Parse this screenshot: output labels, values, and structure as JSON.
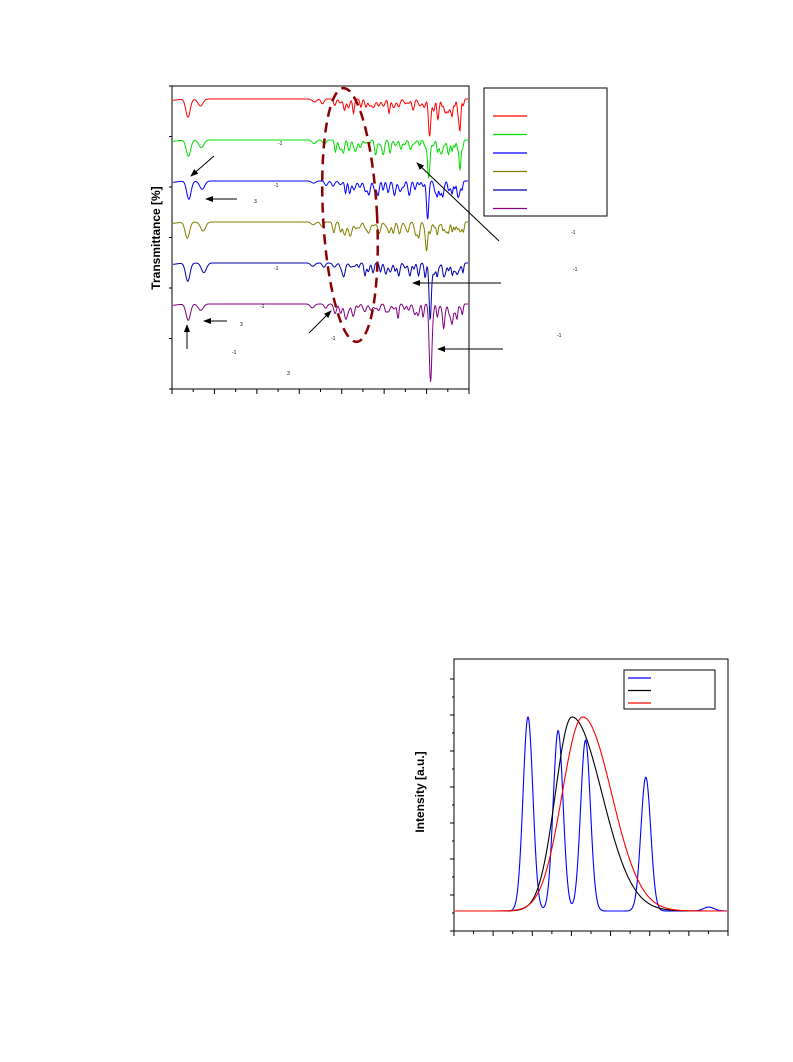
{
  "chart_data": [
    {
      "type": "line",
      "title": "",
      "xlabel": "",
      "ylabel": "Transmittance  [%]",
      "grid": false,
      "legend": {
        "placement": "top-right",
        "entries": [
          {
            "label": "",
            "color": "#ff0000"
          },
          {
            "label": "",
            "color": "#00dd00"
          },
          {
            "label": "",
            "color": "#0000ff"
          },
          {
            "label": "",
            "color": "#808000"
          },
          {
            "label": "",
            "color": "#0000aa"
          },
          {
            "label": "",
            "color": "#800080"
          }
        ]
      },
      "series": [
        {
          "color": "#ff0000"
        },
        {
          "color": "#00dd00"
        },
        {
          "color": "#0000ff"
        },
        {
          "color": "#808000"
        },
        {
          "color": "#0000aa"
        },
        {
          "color": "#800080"
        }
      ],
      "annotations": [
        {
          "text": "-1"
        },
        {
          "text": "-1"
        },
        {
          "text": "3"
        },
        {
          "text": "-1"
        },
        {
          "text": "-1"
        },
        {
          "text": "3"
        },
        {
          "text": "-1"
        },
        {
          "text": "-1"
        },
        {
          "text": "-1"
        },
        {
          "text": "-1"
        },
        {
          "text": "3"
        }
      ],
      "highlight": {
        "shape": "dashed-ellipse",
        "color": "#8b0000"
      }
    },
    {
      "type": "line",
      "title": "",
      "xlabel": "",
      "ylabel": "Intensity [a.u.]",
      "grid": false,
      "legend": {
        "placement": "top-right",
        "entries": [
          {
            "label": "",
            "color": "#0000ff"
          },
          {
            "label": "",
            "color": "#000000"
          },
          {
            "label": "",
            "color": "#ff0000"
          }
        ]
      },
      "series": [
        {
          "color": "#0000ff",
          "peaks": [
            {
              "center": 0.27,
              "height": 1.0
            },
            {
              "center": 0.38,
              "height": 0.93
            },
            {
              "center": 0.48,
              "height": 0.88
            },
            {
              "center": 0.7,
              "height": 0.69
            }
          ]
        },
        {
          "color": "#000000",
          "peaks": [
            {
              "center": 0.43,
              "height": 1.0
            }
          ]
        },
        {
          "color": "#ff0000",
          "peaks": [
            {
              "center": 0.47,
              "height": 1.0
            }
          ]
        }
      ]
    }
  ]
}
